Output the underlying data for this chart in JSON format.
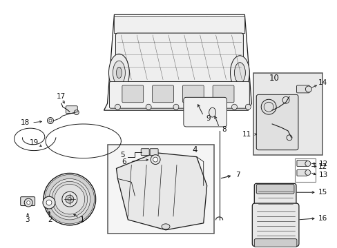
{
  "bg_color": "#ffffff",
  "fig_width": 4.89,
  "fig_height": 3.6,
  "dpi": 100,
  "lc": "#1a1a1a",
  "lc_light": "#888888",
  "fill_light": "#f0f0f0",
  "fill_mid": "#e0e0e0",
  "fill_dark": "#cccccc",
  "lw_main": 0.9,
  "lw_thin": 0.5,
  "lw_thick": 1.2,
  "fs": 7.5
}
